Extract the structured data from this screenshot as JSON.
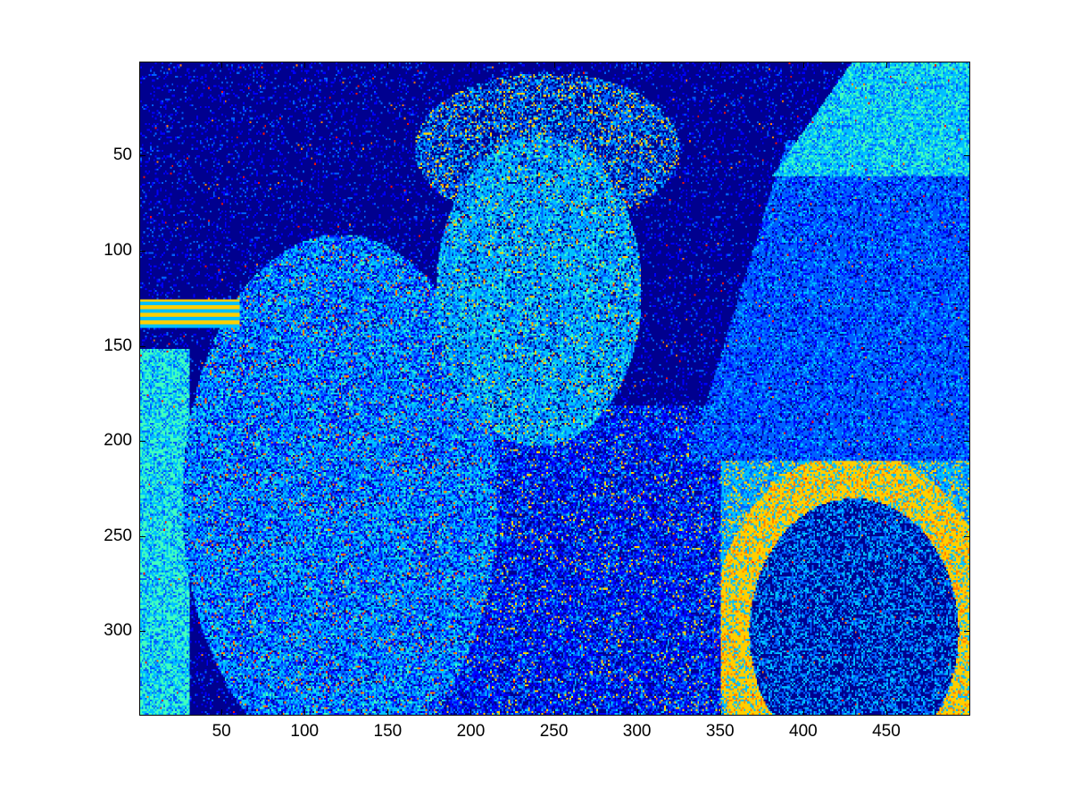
{
  "chart_data": {
    "type": "heatmap",
    "title": "",
    "xlabel": "",
    "ylabel": "",
    "colormap": "jet",
    "colors": {
      "background": "#00008f",
      "blue": "#0000ff",
      "mid_blue": "#0060ff",
      "cyan": "#00bfff",
      "light_cyan": "#40ffbf",
      "yellow": "#ffcf00",
      "orange": "#ff8000",
      "red": "#ff1000"
    },
    "xlim": [
      0.5,
      500.5
    ],
    "ylim": [
      0.5,
      344.5
    ],
    "y_reversed": true,
    "x_ticks": [
      50,
      100,
      150,
      200,
      250,
      300,
      350,
      400,
      450
    ],
    "x_tick_labels": [
      "50",
      "100",
      "150",
      "200",
      "250",
      "300",
      "350",
      "400",
      "450"
    ],
    "y_ticks": [
      50,
      100,
      150,
      200,
      250,
      300
    ],
    "y_tick_labels": [
      "50",
      "100",
      "150",
      "200",
      "250",
      "300"
    ],
    "image_size": [
      500,
      344
    ],
    "grid": false,
    "legend": "none"
  }
}
